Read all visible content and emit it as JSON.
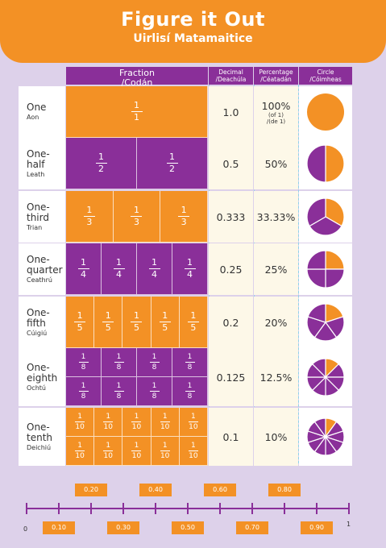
{
  "title": "Figure it Out",
  "subtitle": "Uirlisí Matamaitice",
  "headers": {
    "fraction": [
      "Fraction",
      "/Codán"
    ],
    "decimal": [
      "Decimal",
      "/Deachúla"
    ],
    "percentage": [
      "Percentage",
      "/Céatadán"
    ],
    "circle": [
      "Circle",
      "/Cóimheas"
    ]
  },
  "rows": [
    {
      "name": [
        "One"
      ],
      "irish": "Aon",
      "denominator": 1,
      "pieces_shown": 1,
      "decimal": "1.0",
      "percent": "100%",
      "percent_note": [
        "(of 1)",
        "/(de 1)"
      ],
      "color": "#f39125"
    },
    {
      "name": [
        "One-",
        "half"
      ],
      "irish": "Leath",
      "denominator": 2,
      "pieces_shown": 2,
      "decimal": "0.5",
      "percent": "50%",
      "color": "#8a2f99"
    },
    {
      "name": [
        "One-",
        "third"
      ],
      "irish": "Trian",
      "denominator": 3,
      "pieces_shown": 3,
      "decimal": "0.333",
      "percent": "33.33%",
      "color": "#f39125"
    },
    {
      "name": [
        "One-",
        "quarter"
      ],
      "irish": "Ceathrú",
      "denominator": 4,
      "pieces_shown": 4,
      "decimal": "0.25",
      "percent": "25%",
      "color": "#8a2f99"
    },
    {
      "name": [
        "One-",
        "fifth"
      ],
      "irish": "Cúigiú",
      "denominator": 5,
      "pieces_shown": 5,
      "decimal": "0.2",
      "percent": "20%",
      "color": "#f39125"
    },
    {
      "name": [
        "One-",
        "eighth"
      ],
      "irish": "Ochtú",
      "denominator": 8,
      "pieces_shown": 8,
      "decimal": "0.125",
      "percent": "12.5%",
      "color": "#8a2f99"
    },
    {
      "name": [
        "One-",
        "tenth"
      ],
      "irish": "Deichiú",
      "denominator": 10,
      "pieces_shown": 10,
      "decimal": "0.1",
      "percent": "10%",
      "color": "#f39125"
    }
  ],
  "number_line": {
    "start_label": "0",
    "end_label": "1",
    "labels_above": [
      "0.20",
      "0.40",
      "0.60",
      "0.80"
    ],
    "labels_below": [
      "0.10",
      "0.30",
      "0.50",
      "0.70",
      "0.90"
    ]
  }
}
